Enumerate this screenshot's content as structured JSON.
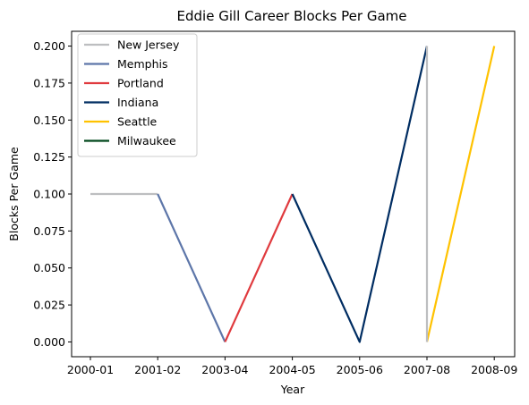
{
  "chart_data": {
    "type": "line",
    "title": "Eddie Gill Career Blocks Per Game",
    "xlabel": "Year",
    "ylabel": "Blocks Per Game",
    "categories": [
      "2000-01",
      "2001-02",
      "2003-04",
      "2004-05",
      "2005-06",
      "2007-08",
      "2008-09"
    ],
    "yticks": [
      "0.000",
      "0.025",
      "0.050",
      "0.075",
      "0.100",
      "0.125",
      "0.150",
      "0.175",
      "0.200"
    ],
    "ylim": [
      -0.01,
      0.21
    ],
    "grid": false,
    "legend_position": "upper-left",
    "series": [
      {
        "name": "New Jersey",
        "color": "#bdbec0",
        "x": [
          "2000-01",
          "2001-02"
        ],
        "values": [
          0.1,
          0.1
        ]
      },
      {
        "name": "Memphis",
        "color": "#5d76a9",
        "x": [
          "2001-02",
          "2003-04"
        ],
        "values": [
          0.1,
          0.0
        ]
      },
      {
        "name": "Portland",
        "color": "#e03a3e",
        "x": [
          "2003-04",
          "2004-05"
        ],
        "values": [
          0.0,
          0.1
        ]
      },
      {
        "name": "Indiana",
        "color": "#002d62",
        "x": [
          "2004-05",
          "2005-06",
          "2007-08"
        ],
        "values": [
          0.1,
          0.0,
          0.2
        ]
      },
      {
        "name": "Seattle",
        "color": "#ffc200",
        "x": [
          "2007-08",
          "2008-09"
        ],
        "values": [
          0.0,
          0.2
        ]
      },
      {
        "name": "Milwaukee",
        "color": "#00471b",
        "x": [],
        "values": []
      },
      {
        "name": "",
        "color": "#bdbec0",
        "x": [
          "2007-08",
          "2007-08"
        ],
        "values": [
          0.2,
          0.0
        ]
      }
    ]
  }
}
